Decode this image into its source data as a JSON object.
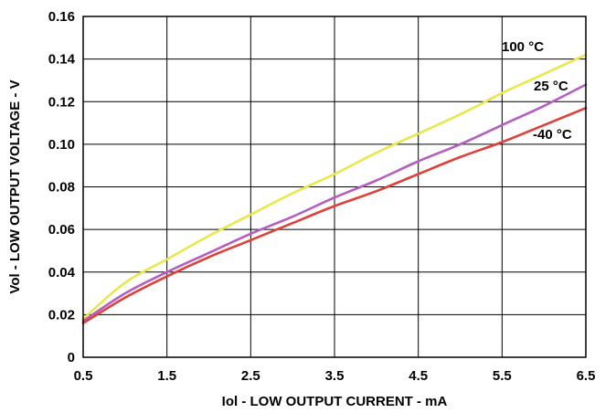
{
  "chart_data": {
    "type": "line",
    "title": "",
    "xlabel": "Iol - LOW OUTPUT CURRENT - mA",
    "ylabel": "Vol - LOW OUTPUT VOLTAGE - V",
    "xlim": [
      0.5,
      6.5
    ],
    "ylim": [
      0,
      0.16
    ],
    "x_ticks": [
      "0.5",
      "1.5",
      "2.5",
      "3.5",
      "4.5",
      "5.5",
      "6.5"
    ],
    "y_ticks": [
      "0",
      "0.02",
      "0.04",
      "0.06",
      "0.08",
      "0.10",
      "0.12",
      "0.14",
      "0.16"
    ],
    "grid": true,
    "legend": "inline labels at right end of curves",
    "series": [
      {
        "name": "100 °C",
        "color": "#e8e84a",
        "x": [
          0.5,
          1.0,
          1.5,
          2.0,
          2.5,
          3.0,
          3.5,
          4.0,
          4.5,
          5.0,
          5.5,
          6.0,
          6.5
        ],
        "y": [
          0.018,
          0.035,
          0.046,
          0.057,
          0.067,
          0.077,
          0.086,
          0.096,
          0.105,
          0.114,
          0.124,
          0.133,
          0.142
        ]
      },
      {
        "name": "25 °C",
        "color": "#b45fbf",
        "x": [
          0.5,
          1.0,
          1.5,
          2.0,
          2.5,
          3.0,
          3.5,
          4.0,
          4.5,
          5.0,
          5.5,
          6.0,
          6.5
        ],
        "y": [
          0.017,
          0.03,
          0.04,
          0.049,
          0.058,
          0.066,
          0.075,
          0.083,
          0.092,
          0.1,
          0.109,
          0.118,
          0.128
        ]
      },
      {
        "name": "-40 °C",
        "color": "#e0403a",
        "x": [
          0.5,
          1.0,
          1.5,
          2.0,
          2.5,
          3.0,
          3.5,
          4.0,
          4.5,
          5.0,
          5.5,
          6.0,
          6.5
        ],
        "y": [
          0.016,
          0.028,
          0.038,
          0.047,
          0.055,
          0.063,
          0.071,
          0.078,
          0.086,
          0.094,
          0.101,
          0.109,
          0.117
        ]
      }
    ]
  }
}
